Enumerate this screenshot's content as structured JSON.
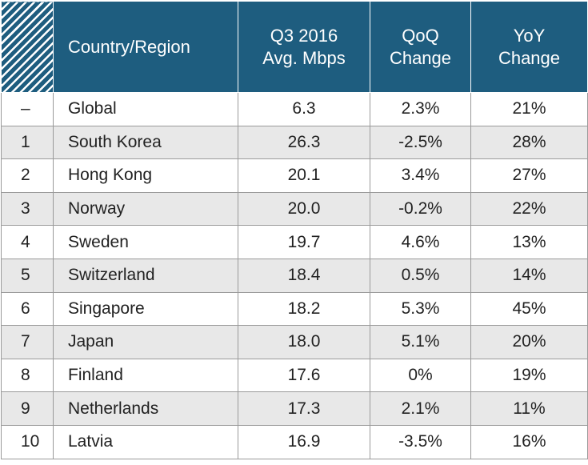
{
  "table": {
    "headers": {
      "rank": "",
      "country": "Country/Region",
      "speed_line1": "Q3 2016",
      "speed_line2": "Avg. Mbps",
      "qoq_line1": "QoQ",
      "qoq_line2": "Change",
      "yoy_line1": "YoY",
      "yoy_line2": "Change"
    },
    "header_color": "#1e5d7f",
    "stripe_color": "#e8e8e8",
    "rows": [
      {
        "rank": "–",
        "country": "Global",
        "speed": "6.3",
        "qoq": "2.3%",
        "yoy": "21%"
      },
      {
        "rank": "1",
        "country": "South Korea",
        "speed": "26.3",
        "qoq": "-2.5%",
        "yoy": "28%"
      },
      {
        "rank": "2",
        "country": "Hong Kong",
        "speed": "20.1",
        "qoq": "3.4%",
        "yoy": "27%"
      },
      {
        "rank": "3",
        "country": "Norway",
        "speed": "20.0",
        "qoq": "-0.2%",
        "yoy": "22%"
      },
      {
        "rank": "4",
        "country": "Sweden",
        "speed": "19.7",
        "qoq": "4.6%",
        "yoy": "13%"
      },
      {
        "rank": "5",
        "country": "Switzerland",
        "speed": "18.4",
        "qoq": "0.5%",
        "yoy": "14%"
      },
      {
        "rank": "6",
        "country": "Singapore",
        "speed": "18.2",
        "qoq": "5.3%",
        "yoy": "45%"
      },
      {
        "rank": "7",
        "country": "Japan",
        "speed": "18.0",
        "qoq": "5.1%",
        "yoy": "20%"
      },
      {
        "rank": "8",
        "country": "Finland",
        "speed": "17.6",
        "qoq": "0%",
        "yoy": "19%"
      },
      {
        "rank": "9",
        "country": "Netherlands",
        "speed": "17.3",
        "qoq": "2.1%",
        "yoy": "11%"
      },
      {
        "rank": "10",
        "country": "Latvia",
        "speed": "16.9",
        "qoq": "-3.5%",
        "yoy": "16%"
      }
    ]
  }
}
